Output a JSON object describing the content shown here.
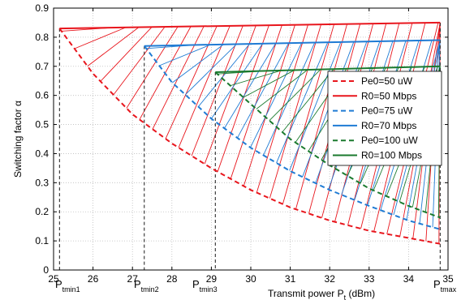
{
  "chart_data": {
    "type": "line",
    "xlabel": "Transmit power  P",
    "xlabel_sub": "t",
    "xlabel_unit": " (dBm)",
    "ylabel": "Switching factor  α",
    "xlim": [
      25,
      35
    ],
    "ylim": [
      0,
      0.9
    ],
    "xticks": [
      25,
      26,
      27,
      28,
      29,
      30,
      31,
      32,
      33,
      34,
      35
    ],
    "yticks": [
      0,
      0.1,
      0.2,
      0.3,
      0.4,
      0.5,
      0.6,
      0.7,
      0.8,
      0.9
    ],
    "grid": true,
    "legend_position": "right",
    "series": [
      {
        "name": "Pe0=50 uW",
        "style": "dashed",
        "color": "#e8161d",
        "x": [
          25.15,
          26,
          27,
          28,
          29,
          30,
          31,
          32,
          33,
          34,
          34.8
        ],
        "values": [
          0.83,
          0.675,
          0.535,
          0.435,
          0.35,
          0.275,
          0.215,
          0.17,
          0.135,
          0.11,
          0.09
        ]
      },
      {
        "name": "R0=50 Mbps",
        "style": "solid",
        "color": "#e8161d",
        "x": [
          25.15,
          34.8
        ],
        "values": [
          0.83,
          0.85
        ]
      },
      {
        "name": "Pe0=75 uW",
        "style": "dashed",
        "color": "#1f7bd4",
        "x": [
          27.3,
          28,
          29,
          30,
          31,
          32,
          33,
          34,
          34.8
        ],
        "values": [
          0.77,
          0.645,
          0.52,
          0.42,
          0.34,
          0.275,
          0.22,
          0.17,
          0.14
        ]
      },
      {
        "name": "R0=70 Mbps",
        "style": "solid",
        "color": "#1f7bd4",
        "x": [
          27.3,
          34.8
        ],
        "values": [
          0.77,
          0.79
        ]
      },
      {
        "name": "Pe0=100 uW",
        "style": "dashed",
        "color": "#1a7a2e",
        "x": [
          29.1,
          30,
          31,
          32,
          33,
          34,
          34.8
        ],
        "values": [
          0.68,
          0.57,
          0.45,
          0.36,
          0.28,
          0.22,
          0.18
        ]
      },
      {
        "name": "R0=100 Mbps",
        "style": "solid",
        "color": "#1a7a2e",
        "x": [
          29.1,
          34.8
        ],
        "values": [
          0.68,
          0.7
        ]
      }
    ],
    "annotations": [
      {
        "main": "P",
        "sub": "tmin1",
        "x": 25.15
      },
      {
        "main": "P",
        "sub": "tmin2",
        "x": 27.3
      },
      {
        "main": "P",
        "sub": "tmin3",
        "x": 29.1
      },
      {
        "main": "P",
        "sub": "tmax",
        "x": 34.8
      }
    ]
  }
}
